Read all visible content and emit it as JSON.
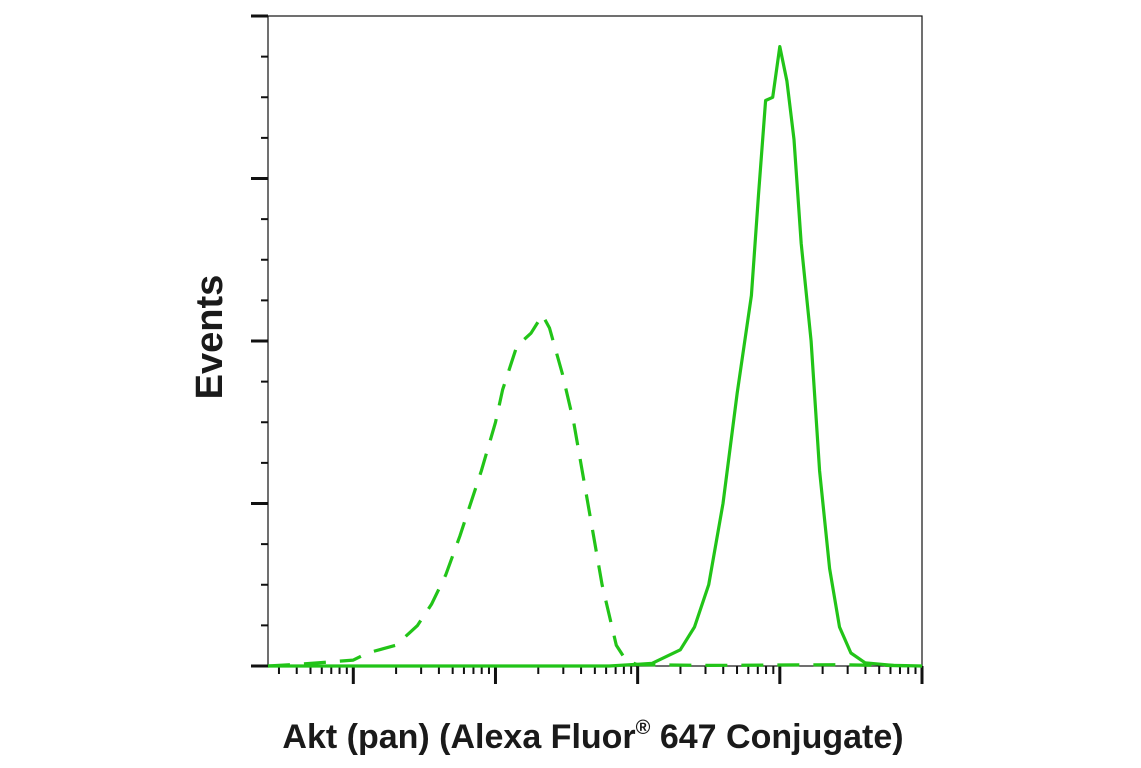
{
  "chart_data": {
    "type": "line",
    "title": "",
    "xlabel": "Akt (pan) (Alexa Fluor",
    "xlabel_sup": "®",
    "xlabel_tail": " 647 Conjugate)",
    "ylabel": "Events",
    "x_scale": "log",
    "x_decades": [
      -1,
      0,
      1,
      2,
      3
    ],
    "xlim": [
      -1.6,
      3.0
    ],
    "ylim": [
      0,
      100
    ],
    "y_major_ticks": [
      0,
      25,
      50,
      75,
      100
    ],
    "y_minor_step": 6.25,
    "grid": false,
    "legend": "none",
    "colors": {
      "series": "#22c418",
      "axis": "#111111"
    },
    "series": [
      {
        "style": "dashed",
        "points": [
          [
            -1.6,
            0
          ],
          [
            -1.3,
            0.4
          ],
          [
            -1.0,
            0.9
          ],
          [
            -0.9,
            2.0
          ],
          [
            -0.7,
            3.2
          ],
          [
            -0.55,
            6.2
          ],
          [
            -0.45,
            9.5
          ],
          [
            -0.35,
            14.0
          ],
          [
            -0.25,
            20.0
          ],
          [
            -0.1,
            30.0
          ],
          [
            0.0,
            37.5
          ],
          [
            0.05,
            42.5
          ],
          [
            0.15,
            49.2
          ],
          [
            0.25,
            51.2
          ],
          [
            0.33,
            54.0
          ],
          [
            0.38,
            52.0
          ],
          [
            0.47,
            45.0
          ],
          [
            0.55,
            37.5
          ],
          [
            0.65,
            25.0
          ],
          [
            0.75,
            12.5
          ],
          [
            0.85,
            3.2
          ],
          [
            0.92,
            0.8
          ],
          [
            1.0,
            0.2
          ],
          [
            1.5,
            0.1
          ],
          [
            2.4,
            0.2
          ],
          [
            3.0,
            0
          ]
        ]
      },
      {
        "style": "solid",
        "points": [
          [
            -1.6,
            0
          ],
          [
            0.8,
            0
          ],
          [
            1.1,
            0.4
          ],
          [
            1.3,
            2.5
          ],
          [
            1.4,
            6.0
          ],
          [
            1.5,
            12.5
          ],
          [
            1.6,
            25.0
          ],
          [
            1.7,
            42.0
          ],
          [
            1.8,
            57.0
          ],
          [
            1.85,
            72.5
          ],
          [
            1.9,
            87.0
          ],
          [
            1.95,
            87.5
          ],
          [
            2.0,
            95.3
          ],
          [
            2.05,
            90.0
          ],
          [
            2.1,
            81.0
          ],
          [
            2.15,
            65.0
          ],
          [
            2.22,
            50.0
          ],
          [
            2.28,
            30.0
          ],
          [
            2.35,
            15.0
          ],
          [
            2.42,
            6.0
          ],
          [
            2.5,
            2.0
          ],
          [
            2.6,
            0.5
          ],
          [
            2.8,
            0.1
          ],
          [
            3.0,
            0
          ]
        ]
      }
    ]
  }
}
